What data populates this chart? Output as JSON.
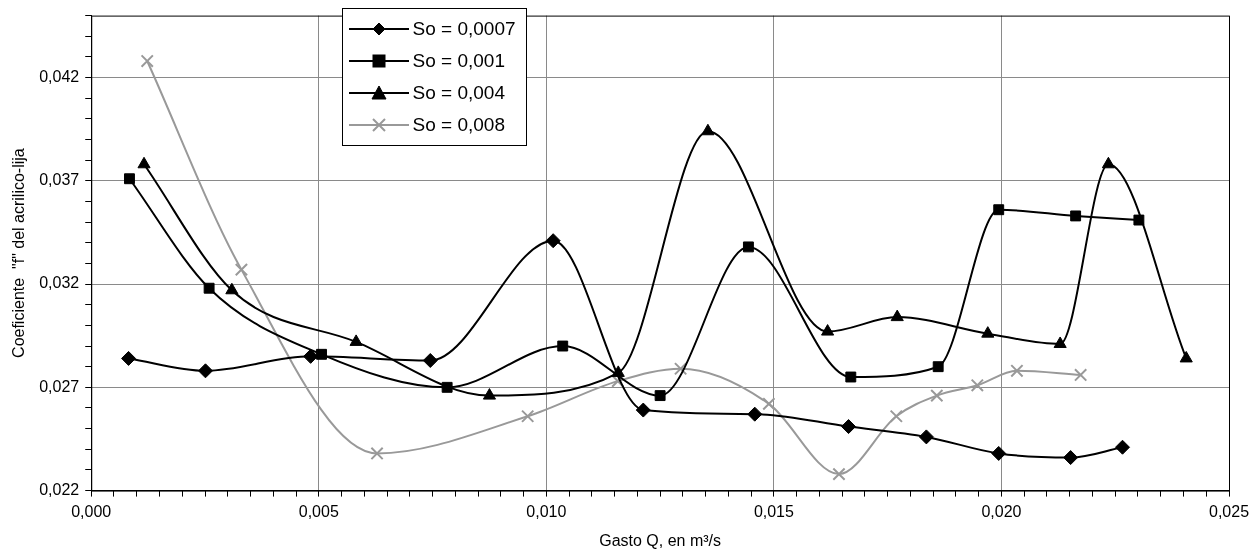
{
  "chart_data": {
    "type": "line",
    "xlabel": "Gasto Q, en m³/s",
    "ylabel": "Coeficiente  \"f\" del acrilico-lija",
    "legend": "top",
    "grid": true,
    "line_style": "solid",
    "xlim": [
      0,
      0.025
    ],
    "ylim": [
      0.022,
      0.045
    ],
    "xticks": [
      {
        "value": 0,
        "label": "0,000"
      },
      {
        "value": 0.0005,
        "label": null
      },
      {
        "value": 0.001,
        "label": null
      },
      {
        "value": 0.0015,
        "label": null
      },
      {
        "value": 0.002,
        "label": null
      },
      {
        "value": 0.0025,
        "label": null
      },
      {
        "value": 0.003,
        "label": null
      },
      {
        "value": 0.0035,
        "label": null
      },
      {
        "value": 0.004,
        "label": null
      },
      {
        "value": 0.0045,
        "label": null
      },
      {
        "value": 0.005,
        "label": "0,005"
      },
      {
        "value": 0.0055,
        "label": null
      },
      {
        "value": 0.006,
        "label": null
      },
      {
        "value": 0.0065,
        "label": null
      },
      {
        "value": 0.007,
        "label": null
      },
      {
        "value": 0.0075,
        "label": null
      },
      {
        "value": 0.008,
        "label": null
      },
      {
        "value": 0.0085,
        "label": null
      },
      {
        "value": 0.009,
        "label": null
      },
      {
        "value": 0.0095,
        "label": null
      },
      {
        "value": 0.01,
        "label": "0,010"
      },
      {
        "value": 0.0105,
        "label": null
      },
      {
        "value": 0.011,
        "label": null
      },
      {
        "value": 0.0115,
        "label": null
      },
      {
        "value": 0.012,
        "label": null
      },
      {
        "value": 0.0125,
        "label": null
      },
      {
        "value": 0.013,
        "label": null
      },
      {
        "value": 0.0135,
        "label": null
      },
      {
        "value": 0.014,
        "label": null
      },
      {
        "value": 0.0145,
        "label": null
      },
      {
        "value": 0.015,
        "label": "0,015"
      },
      {
        "value": 0.0155,
        "label": null
      },
      {
        "value": 0.016,
        "label": null
      },
      {
        "value": 0.0165,
        "label": null
      },
      {
        "value": 0.017,
        "label": null
      },
      {
        "value": 0.0175,
        "label": null
      },
      {
        "value": 0.018,
        "label": null
      },
      {
        "value": 0.0185,
        "label": null
      },
      {
        "value": 0.019,
        "label": null
      },
      {
        "value": 0.0195,
        "label": null
      },
      {
        "value": 0.02,
        "label": "0,020"
      },
      {
        "value": 0.0205,
        "label": null
      },
      {
        "value": 0.021,
        "label": null
      },
      {
        "value": 0.0215,
        "label": null
      },
      {
        "value": 0.022,
        "label": null
      },
      {
        "value": 0.0225,
        "label": null
      },
      {
        "value": 0.023,
        "label": null
      },
      {
        "value": 0.0235,
        "label": null
      },
      {
        "value": 0.024,
        "label": null
      },
      {
        "value": 0.0245,
        "label": null
      },
      {
        "value": 0.025,
        "label": "0,025"
      }
    ],
    "yticks": [
      {
        "value": 0.022,
        "label": "0,022"
      },
      {
        "value": 0.023,
        "label": null
      },
      {
        "value": 0.024,
        "label": null
      },
      {
        "value": 0.025,
        "label": null
      },
      {
        "value": 0.026,
        "label": null
      },
      {
        "value": 0.027,
        "label": "0,027"
      },
      {
        "value": 0.028,
        "label": null
      },
      {
        "value": 0.029,
        "label": null
      },
      {
        "value": 0.03,
        "label": null
      },
      {
        "value": 0.031,
        "label": null
      },
      {
        "value": 0.032,
        "label": "0,032"
      },
      {
        "value": 0.033,
        "label": null
      },
      {
        "value": 0.034,
        "label": null
      },
      {
        "value": 0.035,
        "label": null
      },
      {
        "value": 0.036,
        "label": null
      },
      {
        "value": 0.037,
        "label": "0,037"
      },
      {
        "value": 0.038,
        "label": null
      },
      {
        "value": 0.039,
        "label": null
      },
      {
        "value": 0.04,
        "label": null
      },
      {
        "value": 0.041,
        "label": null
      },
      {
        "value": 0.042,
        "label": "0,042"
      },
      {
        "value": 0.043,
        "label": null
      },
      {
        "value": 0.044,
        "label": null
      },
      {
        "value": 0.045,
        "label": null
      }
    ],
    "series": [
      {
        "name": "So = 0,0007",
        "color": "#000000",
        "marker": "diamond",
        "x": [
          0.00082,
          0.00251,
          0.00482,
          0.00745,
          0.01015,
          0.01213,
          0.01458,
          0.01664,
          0.01835,
          0.01994,
          0.02152,
          0.02266
        ],
        "values": [
          0.0284,
          0.0278,
          0.0285,
          0.0283,
          0.0341,
          0.0259,
          0.0257,
          0.0251,
          0.0246,
          0.0238,
          0.0236,
          0.0241
        ]
      },
      {
        "name": "So = 0,001",
        "color": "#000000",
        "marker": "square",
        "x": [
          0.00084,
          0.00259,
          0.00506,
          0.00782,
          0.01036,
          0.0125,
          0.01444,
          0.01669,
          0.01861,
          0.01994,
          0.02163,
          0.02302
        ],
        "values": [
          0.0371,
          0.0318,
          0.0286,
          0.027,
          0.029,
          0.0266,
          0.0338,
          0.0275,
          0.028,
          0.0356,
          0.0353,
          0.0351
        ]
      },
      {
        "name": "So = 0,004",
        "color": "#000000",
        "marker": "triangle",
        "x": [
          0.00116,
          0.00309,
          0.00582,
          0.00875,
          0.01158,
          0.01355,
          0.01618,
          0.01771,
          0.0197,
          0.02129,
          0.02235,
          0.02406
        ],
        "values": [
          0.0378,
          0.0317,
          0.0292,
          0.0266,
          0.0277,
          0.0394,
          0.0297,
          0.0304,
          0.0296,
          0.0291,
          0.0378,
          0.0284
        ]
      },
      {
        "name": "So = 0,008",
        "color": "#999999",
        "marker": "cross",
        "x": [
          0.00123,
          0.0033,
          0.00628,
          0.00959,
          0.01157,
          0.01295,
          0.01489,
          0.01643,
          0.01769,
          0.01858,
          0.01947,
          0.02034,
          0.02174
        ],
        "values": [
          0.0428,
          0.0327,
          0.0238,
          0.0256,
          0.0273,
          0.0279,
          0.0262,
          0.0228,
          0.0256,
          0.0266,
          0.0271,
          0.0278,
          0.0276
        ]
      }
    ]
  }
}
